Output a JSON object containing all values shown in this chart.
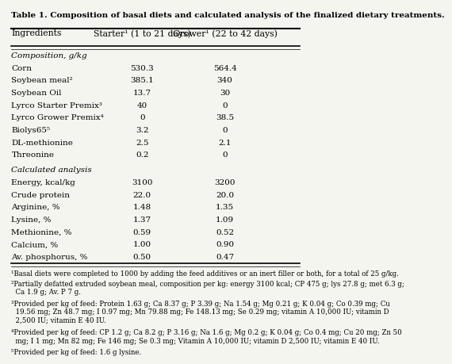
{
  "title": "Table 1. Composition of basal diets and calculated analysis of the finalized dietary treatments.",
  "col_headers": [
    "Ingredients",
    "Starter¹ (1 to 21 days)",
    "Grower¹ (22 to 42 days)"
  ],
  "section1_label": "Composition, g/kg",
  "section1_rows": [
    [
      "Corn",
      "530.3",
      "564.4"
    ],
    [
      "Soybean meal²",
      "385.1",
      "340"
    ],
    [
      "Soybean Oil",
      "13.7",
      "30"
    ],
    [
      "Lyrco Starter Premix³",
      "40",
      "0"
    ],
    [
      "Lyrco Grower Premix⁴",
      "0",
      "38.5"
    ],
    [
      "Biolys65⁵",
      "3.2",
      "0"
    ],
    [
      "DL-methionine",
      "2.5",
      "2.1"
    ],
    [
      "Threonine",
      "0.2",
      "0"
    ]
  ],
  "section2_label": "Calculated analysis",
  "section2_rows": [
    [
      "Energy, kcal/kg",
      "3100",
      "3200"
    ],
    [
      "Crude protein",
      "22.0",
      "20.0"
    ],
    [
      "Arginine, %",
      "1.48",
      "1.35"
    ],
    [
      "Lysine, %",
      "1.37",
      "1.09"
    ],
    [
      "Methionine, %",
      "0.59",
      "0.52"
    ],
    [
      "Calcium, %",
      "1.00",
      "0.90"
    ],
    [
      "Av. phosphorus, %",
      "0.50",
      "0.47"
    ]
  ],
  "footnotes": [
    "¹Basal diets were completed to 1000 by adding the feed additives or an inert filler or both, for a total of 25 g/kg.",
    "²Partially defatted extruded soybean meal, composition per kg: energy 3100 kcal; CP 475 g; lys 27.8 g; met 6.3 g;\n  Ca 1.9 g; Av. P 7 g.",
    "³Provided per kg of feed: Protein 1.63 g; Ca 8.37 g; P 3.39 g; Na 1.54 g; Mg 0.21 g; K 0.04 g; Co 0.39 mg; Cu\n  19.56 mg; Zn 48.7 mg; I 0.97 mg; Mn 79.88 mg; Fe 148.13 mg; Se 0.29 mg; vitamin A 10,000 IU; vitamin D\n  2,500 IU; vitamin E 40 IU.",
    "⁴Provided per kg of feed: CP 1.2 g; Ca 8.2 g; P 3.16 g; Na 1.6 g; Mg 0.2 g; K 0.04 g; Co 0.4 mg; Cu 20 mg; Zn 50\n  mg; I 1 mg; Mn 82 mg; Fe 146 mg; Se 0.3 mg; Vitamin A 10,000 IU; vitamin D 2,500 IU; vitamin E 40 IU.",
    "⁵Provided per kg of feed: 1.6 g lysine."
  ],
  "bg_color": "#f5f5f0",
  "font_size_title": 7.5,
  "font_size_header": 7.8,
  "font_size_body": 7.5,
  "font_size_footnote": 6.2
}
